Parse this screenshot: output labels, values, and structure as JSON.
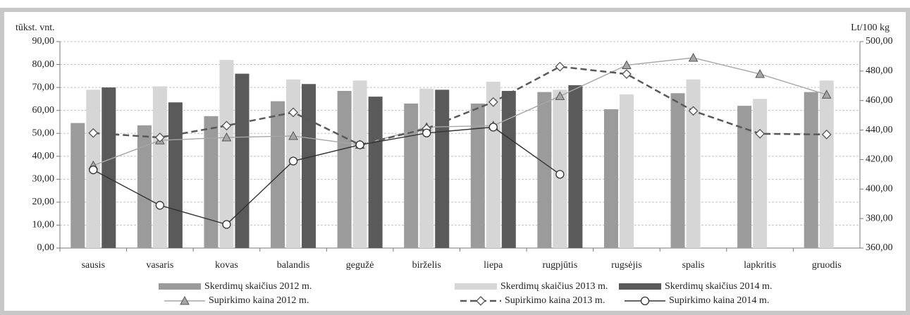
{
  "chart_data": {
    "type": "bar-line",
    "ylabel": "tūkst. vnt.",
    "y2label": "Lt/100 kg",
    "categories": [
      "sausis",
      "vasaris",
      "kovas",
      "balandis",
      "gegužė",
      "birželis",
      "liepa",
      "rugpjūtis",
      "rugsėjis",
      "spalis",
      "lapkritis",
      "gruodis"
    ],
    "ylim": [
      0,
      90
    ],
    "yticks": [
      {
        "value": 0,
        "label": "0,00"
      },
      {
        "value": 10,
        "label": "10,00"
      },
      {
        "value": 20,
        "label": "20,00"
      },
      {
        "value": 30,
        "label": "30,00"
      },
      {
        "value": 40,
        "label": "40,00"
      },
      {
        "value": 50,
        "label": "50,00"
      },
      {
        "value": 60,
        "label": "60,00"
      },
      {
        "value": 70,
        "label": "70,00"
      },
      {
        "value": 80,
        "label": "80,00"
      },
      {
        "value": 90,
        "label": "90,00"
      }
    ],
    "y2lim": [
      360,
      500
    ],
    "y2ticks": [
      {
        "value": 360,
        "label": "360,00"
      },
      {
        "value": 380,
        "label": "380,00"
      },
      {
        "value": 400,
        "label": "400,00"
      },
      {
        "value": 420,
        "label": "420,00"
      },
      {
        "value": 440,
        "label": "440,00"
      },
      {
        "value": 460,
        "label": "460,00"
      },
      {
        "value": 480,
        "label": "480,00"
      },
      {
        "value": 500,
        "label": "500,00"
      }
    ],
    "grid": true,
    "series": [
      {
        "name": "Skerdimų skaičius 2012 m.",
        "type": "bar",
        "color": "#9b9b9b",
        "values": [
          54.5,
          53.5,
          57.5,
          64,
          68.5,
          63,
          63,
          68,
          60.5,
          67.5,
          62,
          68
        ]
      },
      {
        "name": "Skerdimų skaičius 2013 m.",
        "type": "bar",
        "color": "#d6d6d6",
        "values": [
          69,
          70.5,
          82,
          73.5,
          73,
          69.5,
          72.5,
          69,
          67,
          73.5,
          65,
          73
        ]
      },
      {
        "name": "Skerdimų skaičius 2014 m.",
        "type": "bar",
        "color": "#5a5a5a",
        "values": [
          70,
          63.5,
          76,
          71.5,
          66,
          69,
          68.5,
          71,
          null,
          null,
          null,
          null
        ]
      },
      {
        "name": "Supirkimo kaina 2012 m.",
        "type": "line",
        "axis": "y2",
        "marker": "triangle",
        "dash": false,
        "color": "#a6a6a6",
        "values": [
          416,
          433,
          435,
          436,
          430,
          442,
          443,
          463,
          484,
          489,
          478,
          464
        ]
      },
      {
        "name": "Supirkimo kaina 2013 m.",
        "type": "line",
        "axis": "y2",
        "marker": "diamond",
        "dash": true,
        "color": "#595959",
        "values": [
          438,
          435,
          443,
          452,
          430,
          441,
          459,
          483,
          478,
          453,
          437.5,
          437
        ]
      },
      {
        "name": "Supirkimo kaina 2014 m.",
        "type": "line",
        "axis": "y2",
        "marker": "circle",
        "dash": false,
        "color": "#333333",
        "values": [
          413,
          389,
          376,
          419,
          430,
          438,
          442,
          410,
          null,
          null,
          null,
          null
        ]
      }
    ]
  }
}
